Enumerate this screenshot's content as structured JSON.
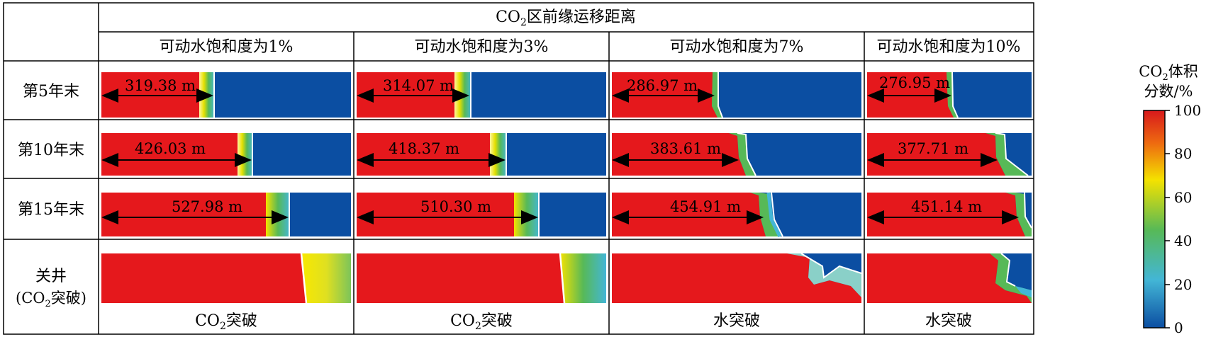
{
  "header": {
    "main_prefix": "CO",
    "main_sub": "2",
    "main_suffix": "区前缘运移距离",
    "columns": [
      "可动水饱和度为1%",
      "可动水饱和度为3%",
      "可动水饱和度为7%",
      "可动水饱和度为10%"
    ]
  },
  "rows": [
    {
      "label": "第5年末"
    },
    {
      "label": "第10年末"
    },
    {
      "label": "第15年末"
    },
    {
      "label_line1": "关井",
      "label_line2_prefix": "(CO",
      "label_line2_sub": "2",
      "label_line2_suffix": "突破)"
    }
  ],
  "distances": [
    [
      "319.38 m",
      "314.07 m",
      "286.97 m",
      "276.95 m"
    ],
    [
      "426.03 m",
      "418.37 m",
      "383.61 m",
      "377.71 m"
    ],
    [
      "527.98 m",
      "510.30 m",
      "454.91 m",
      "451.14 m"
    ]
  ],
  "breakthrough": [
    {
      "prefix": "CO",
      "sub": "2",
      "suffix": "突破"
    },
    {
      "prefix": "CO",
      "sub": "2",
      "suffix": "突破"
    },
    {
      "prefix": "水突破",
      "sub": "",
      "suffix": ""
    },
    {
      "prefix": "水突破",
      "sub": "",
      "suffix": ""
    }
  ],
  "colorbar": {
    "title_line1_prefix": "CO",
    "title_line1_sub": "2",
    "title_line1_suffix": "体积",
    "title_line2": "分数/%",
    "ticks": [
      "100",
      "80",
      "60",
      "40",
      "20",
      "0"
    ],
    "colors": [
      "#d7191c",
      "#ee6a10",
      "#f4e200",
      "#57b957",
      "#43b6d6",
      "#0b4ea2"
    ]
  }
}
